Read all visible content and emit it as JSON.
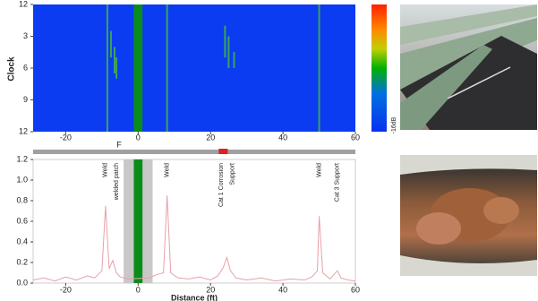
{
  "chart_data": [
    {
      "type": "heatmap",
      "ylabel": "Clock",
      "background": "#0b3cf2",
      "stripe_color": "#3aa35a",
      "band_color": "#0a8c1a",
      "xlim": [
        -29,
        60
      ],
      "xticks": [
        -20,
        0,
        20,
        40,
        60
      ],
      "ylim": [
        0,
        12
      ],
      "yticks": [
        {
          "value": 0,
          "label": "12"
        },
        3,
        6,
        9,
        {
          "value": 12,
          "label": "12"
        }
      ],
      "band": [
        -1.2,
        1.2
      ],
      "stripes": [
        {
          "x": -8.5,
          "from": 0,
          "to": 12
        },
        {
          "x": 8,
          "from": 0,
          "to": 12
        },
        {
          "x": 50,
          "from": 0,
          "to": 12
        },
        {
          "x": -7.5,
          "from": 2.5,
          "to": 5
        },
        {
          "x": -6.5,
          "from": 4,
          "to": 6.5
        },
        {
          "x": -6,
          "from": 5,
          "to": 7
        },
        {
          "x": 24,
          "from": 2,
          "to": 5
        },
        {
          "x": 25,
          "from": 3,
          "to": 6
        },
        {
          "x": 26.5,
          "from": 4.5,
          "to": 6
        }
      ],
      "colorbar_label": "-16dB",
      "scroll_label": "F",
      "scroll_position": 23.5
    },
    {
      "type": "line",
      "xlabel": "Distance (ft)",
      "color": "#e8a0a8",
      "band_color": "#0a8c1a",
      "shade_color": "#c8c8c8",
      "xlim": [
        -29,
        60
      ],
      "xticks": [
        -20,
        0,
        20,
        40,
        60
      ],
      "ylim": [
        0,
        1.2
      ],
      "yticks": [
        {
          "value": 0,
          "label": "0.0"
        },
        0.2,
        0.4,
        0.6,
        0.8,
        {
          "value": 1,
          "label": "1.0"
        },
        1.2
      ],
      "band": [
        -1.2,
        1.2
      ],
      "shade": [
        -4,
        4
      ],
      "x": [
        -29,
        -26,
        -23,
        -20,
        -17,
        -14,
        -12,
        -10,
        -9,
        -8,
        -7,
        -6,
        -5,
        -3,
        3,
        5,
        7,
        8,
        9,
        11,
        14,
        17,
        20,
        22,
        23.5,
        24.5,
        25.5,
        27,
        30,
        34,
        38,
        42,
        46,
        48,
        49.5,
        50,
        51,
        53,
        55,
        56,
        58,
        60
      ],
      "values": [
        0.03,
        0.05,
        0.02,
        0.06,
        0.03,
        0.07,
        0.05,
        0.12,
        0.75,
        0.14,
        0.22,
        0.1,
        0.06,
        0.04,
        0.05,
        0.08,
        0.1,
        0.85,
        0.1,
        0.05,
        0.04,
        0.06,
        0.03,
        0.07,
        0.15,
        0.25,
        0.12,
        0.05,
        0.03,
        0.05,
        0.02,
        0.04,
        0.03,
        0.06,
        0.12,
        0.65,
        0.1,
        0.04,
        0.12,
        0.05,
        0.03,
        0.02
      ],
      "annotations": [
        {
          "text": "Weld",
          "x": -9
        },
        {
          "text": "welded patch",
          "x": -6
        },
        {
          "text": "Weld",
          "x": 8
        },
        {
          "text": "Cat 1 Corrosion",
          "x": 23
        },
        {
          "text": "Support",
          "x": 26
        },
        {
          "text": "Weld",
          "x": 50
        },
        {
          "text": "Cat 3 Support",
          "x": 55
        }
      ]
    }
  ]
}
